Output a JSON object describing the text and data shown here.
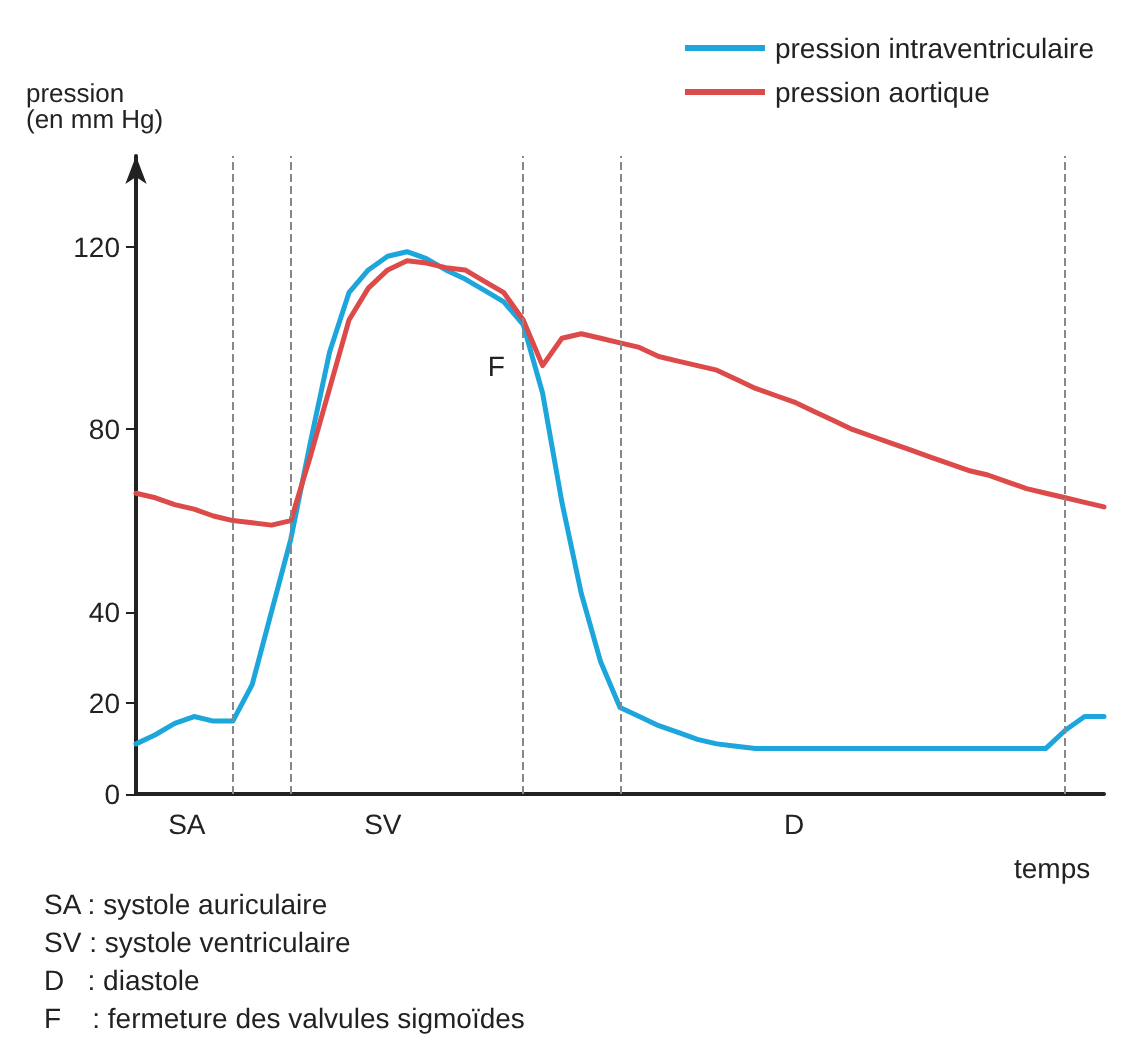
{
  "chart_data": {
    "type": "line",
    "ylabel": "pression\n(en mm Hg)",
    "xlabel": "temps",
    "categories": [
      null,
      null,
      null,
      null,
      null,
      null,
      null,
      null,
      null,
      null,
      null,
      null,
      null,
      null,
      null,
      null,
      null,
      null,
      null,
      null,
      null,
      null,
      null,
      null,
      null,
      null,
      null,
      null,
      null,
      null,
      null,
      null,
      null,
      null,
      null,
      null,
      null,
      null,
      null,
      null,
      null,
      null,
      null,
      null,
      null,
      null,
      null,
      null,
      null,
      null,
      null
    ],
    "ylim": [
      0,
      140
    ],
    "yticks": [
      0,
      20,
      40,
      80,
      120
    ],
    "tick_labels": "y",
    "grid": "x",
    "legend": "top right",
    "marker": "none",
    "line_style": "solid",
    "series": [
      {
        "name": "pression intraventriculaire",
        "color": "#1ca6dc",
        "values": [
          11,
          13,
          15.5,
          17,
          16,
          16,
          24,
          40,
          56,
          77,
          97,
          110,
          115,
          118,
          119,
          117.5,
          115,
          113,
          110.5,
          108,
          103,
          88,
          64,
          44,
          29,
          19,
          17,
          15,
          13.5,
          12,
          11,
          10.5,
          10,
          10,
          10,
          10,
          10,
          10,
          10,
          10,
          10,
          10,
          10,
          10,
          10,
          10,
          10,
          10,
          14,
          17,
          17
        ]
      },
      {
        "name": "pression aortique",
        "color": "#dd4a4a",
        "values": [
          66,
          65,
          63.5,
          62.5,
          61,
          60,
          59.5,
          59,
          60,
          74,
          89,
          104,
          111,
          115,
          117,
          116.5,
          115.5,
          115,
          112.5,
          110,
          104,
          94,
          100,
          101,
          100,
          99,
          98,
          96,
          95,
          94,
          93,
          91,
          89,
          87.5,
          86,
          84,
          82,
          80,
          78.5,
          77,
          75.5,
          74,
          72.5,
          71,
          70,
          68.5,
          67,
          66,
          65,
          64,
          63
        ]
      }
    ],
    "annotations": [
      "F",
      "SA",
      "SV",
      "D",
      "SA : systole auriculaire",
      "SV : systole ventriculaire",
      "D   : diastole",
      "F    : fermeture des valvules sigmoïdes"
    ]
  }
}
